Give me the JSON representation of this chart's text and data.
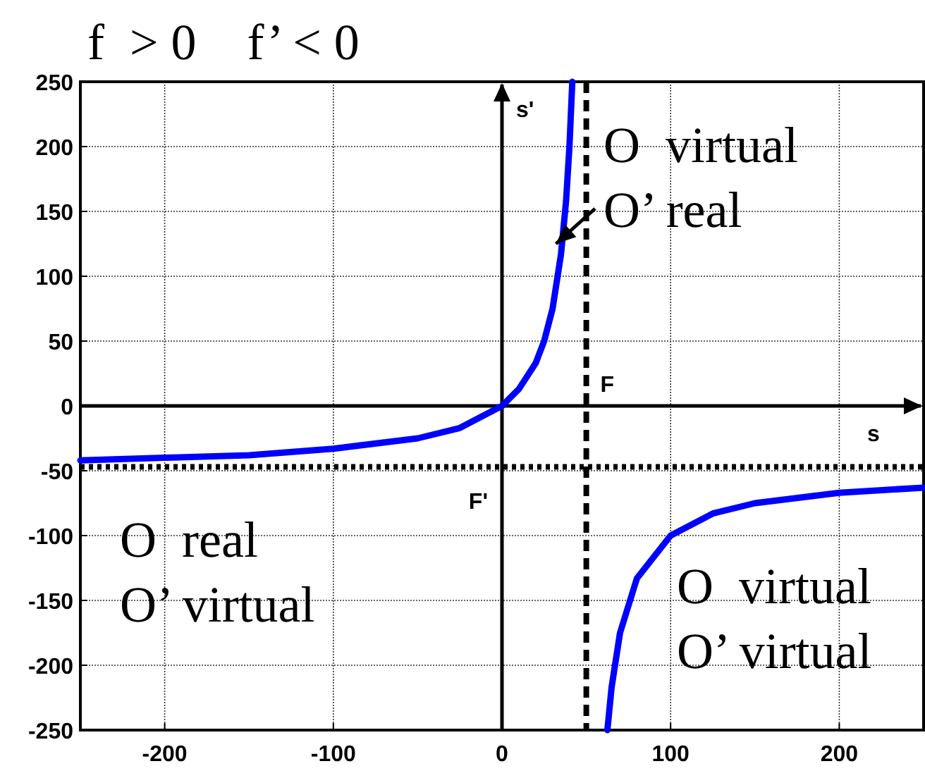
{
  "chart_data": {
    "type": "line",
    "title": "f  > 0    f’ < 0",
    "xlabel": "s",
    "ylabel": "s'",
    "x": [
      -250,
      -200,
      -150,
      -100,
      -50,
      -25,
      0,
      10,
      20,
      25,
      30,
      35,
      38,
      40,
      41.7,
      null,
      62.5,
      65,
      70,
      80,
      100,
      125,
      150,
      200,
      250
    ],
    "series": [
      {
        "color": "#0000ff",
        "values": [
          -42,
          -40,
          -38,
          -33,
          -25,
          -17,
          0,
          13,
          33,
          50,
          75,
          117,
          158,
          200,
          250,
          null,
          -250,
          -217,
          -175,
          -133,
          -100,
          -83,
          -75,
          -67,
          -63
        ]
      }
    ],
    "xlim": [
      -250,
      250
    ],
    "ylim": [
      -250,
      250
    ],
    "xticks": [
      -200,
      -100,
      0,
      100,
      200
    ],
    "yticks": [
      -250,
      -200,
      -150,
      -100,
      -50,
      0,
      50,
      100,
      150,
      200,
      250
    ],
    "grid": true,
    "line_style": "solid",
    "marker": "none",
    "ref_lines": [
      {
        "axis": "x",
        "value": 50,
        "label": "F",
        "line_style": "dashed"
      },
      {
        "axis": "y",
        "value": -47,
        "label": "F'",
        "line_style": "dotted"
      }
    ],
    "annotations": [
      {
        "text": "O  virtual\nO’ real",
        "x": 32,
        "y": 125
      },
      "O  real\nO’ virtual",
      "O  virtual\nO’ virtual"
    ]
  }
}
